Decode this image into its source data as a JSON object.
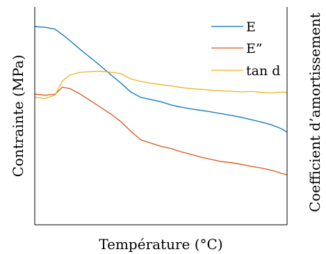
{
  "chart_data": {
    "type": "line",
    "xlabel": "Température (°C)",
    "ylabel": "Contrainte (MPa)",
    "y2label": "Coefficient d’amortissement",
    "grid": false,
    "legend_placement": "top-right",
    "xlim": [
      0,
      100
    ],
    "ylim": [
      0,
      100
    ],
    "y2lim": [
      0,
      100
    ],
    "x": [
      0,
      4,
      8,
      11,
      14,
      18,
      22,
      26,
      30,
      34,
      38,
      42,
      46,
      50,
      54,
      58,
      62,
      66,
      70,
      74,
      78,
      82,
      86,
      90,
      94,
      98,
      100
    ],
    "series": [
      {
        "name": "E",
        "color": "#0072BD",
        "axis": "left",
        "values": [
          91,
          90.7,
          89.8,
          87.3,
          84.5,
          80.5,
          76.8,
          73,
          69,
          65.2,
          61,
          58.5,
          57.5,
          56.5,
          55,
          54,
          53.2,
          52.5,
          51.8,
          51,
          50.2,
          49.3,
          48.2,
          47.1,
          45.8,
          44,
          42.5
        ]
      },
      {
        "name": "E”",
        "color": "#D95319",
        "axis": "left",
        "values": [
          60,
          59.5,
          59.9,
          63.2,
          62.5,
          60,
          57,
          54,
          51,
          47.5,
          43,
          39,
          37.5,
          36,
          35,
          33.5,
          32.3,
          31,
          30,
          29,
          28.5,
          27.7,
          26.8,
          26,
          25,
          23.5,
          23
        ]
      },
      {
        "name": "tan d",
        "color": "#EDB120",
        "axis": "right",
        "values": [
          58.5,
          58,
          59.5,
          66,
          68.8,
          70,
          70.3,
          70.5,
          70,
          69.5,
          67,
          65.8,
          65,
          64.3,
          63.8,
          63,
          62.5,
          62.2,
          61.8,
          61.5,
          61.3,
          61,
          61.2,
          60.8,
          60.5,
          61,
          60.8
        ]
      }
    ]
  }
}
